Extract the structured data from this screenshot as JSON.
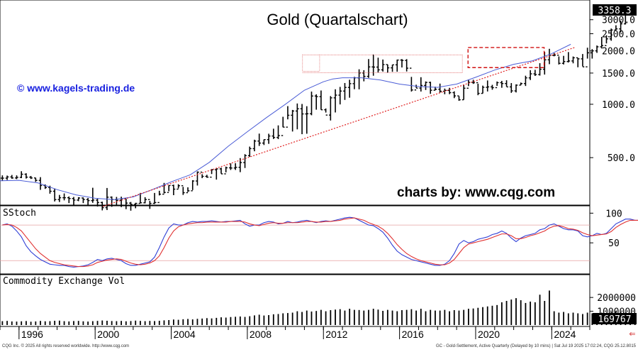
{
  "chart_data": [
    {
      "type": "ohlc",
      "title": "Gold (Quartalschart)",
      "watermark_left": "© www.kagels-trading.de",
      "watermark_right": "charts by: www.cqg.com",
      "scale": "log",
      "ylim": [
        280,
        3700
      ],
      "yticks": [
        500,
        1000,
        1500,
        2000,
        2500,
        3000
      ],
      "ytick_labels": [
        "500.0",
        "1000.0",
        "1500.0",
        "2000.0",
        "2500.0",
        "3000.0"
      ],
      "last_value_label": "3358.3",
      "x_range": [
        1995.0,
        2026.0
      ],
      "x_ticks": [
        1996,
        2000,
        2004,
        2008,
        2012,
        2016,
        2020,
        2024
      ],
      "x_tick_labels": [
        "1996",
        "2000",
        "2004",
        "2008",
        "2012",
        "2016",
        "2020",
        "2024"
      ],
      "series": [
        {
          "kind": "quarterly-bars",
          "start": 1995.0,
          "step": 0.25,
          "close": [
            383,
            389,
            384,
            387,
            403,
            388,
            384,
            372,
            348,
            339,
            323,
            290,
            297,
            297,
            294,
            288,
            296,
            290,
            286,
            288,
            279,
            261,
            299,
            290,
            287,
            294,
            277,
            272,
            276,
            278,
            290,
            276,
            279,
            311,
            318,
            348,
            332,
            347,
            317,
            325,
            369,
            414,
            392,
            388,
            427,
            432,
            405,
            438,
            437,
            441,
            469,
            513,
            562,
            620,
            604,
            632,
            662,
            650,
            666,
            743,
            867,
            916,
            943,
            882,
            884,
            1113,
            1104,
            931,
            869,
            1087,
            1126,
            1187,
            1244,
            1307,
            1410,
            1503,
            1437,
            1624,
            1621,
            1564,
            1675,
            1605,
            1669,
            1776,
            1766,
            1598,
            1204,
            1234,
            1277,
            1328,
            1200,
            1215,
            1184,
            1198,
            1163,
            1115,
            1060,
            1232,
            1329,
            1323,
            1152,
            1246,
            1253,
            1241,
            1324,
            1309,
            1253,
            1190,
            1282,
            1309,
            1409,
            1485,
            1471,
            1576,
            1781,
            1886,
            1892,
            1702,
            1742,
            1755,
            1829,
            1804,
            1626,
            1951,
            2002,
            2109,
            2143,
            2339,
            2624,
            2662,
            2842,
            3350,
            3358
          ],
          "high": [
            397,
            396,
            399,
            397,
            419,
            408,
            394,
            385,
            388,
            353,
            347,
            335,
            308,
            314,
            302,
            300,
            299,
            298,
            296,
            338,
            293,
            282,
            337,
            302,
            300,
            301,
            293,
            281,
            278,
            316,
            299,
            285,
            316,
            325,
            360,
            349,
            352,
            354,
            342,
            340,
            373,
            418,
            403,
            400,
            431,
            433,
            439,
            445,
            464,
            465,
            497,
            523,
            577,
            631,
            683,
            633,
            682,
            728,
            760,
            850,
            976,
            929,
            1010,
            1004,
            975,
            1179,
            1138,
            1196,
            947,
            1112,
            1215,
            1253,
            1318,
            1375,
            1427,
            1575,
            1557,
            1799,
            1908,
            1831,
            1788,
            1675,
            1671,
            1787,
            1798,
            1797,
            1427,
            1289,
            1421,
            1345,
            1340,
            1256,
            1308,
            1226,
            1238,
            1183,
            1110,
            1287,
            1378,
            1375,
            1306,
            1274,
            1362,
            1287,
            1344,
            1355,
            1366,
            1317,
            1295,
            1326,
            1449,
            1557,
            1564,
            1705,
            1973,
            2055,
            1945,
            1862,
            1876,
            1970,
            1860,
            1825,
            1921,
            2085,
            2048,
            2145,
            2400,
            2451,
            2674,
            2790,
            2959,
            3457,
            3509
          ],
          "low": [
            369,
            374,
            380,
            378,
            383,
            381,
            379,
            365,
            329,
            333,
            313,
            283,
            281,
            287,
            277,
            271,
            284,
            277,
            269,
            278,
            265,
            252,
            253,
            264,
            270,
            263,
            256,
            251,
            259,
            276,
            276,
            257,
            274,
            306,
            314,
            323,
            307,
            335,
            308,
            320,
            328,
            348,
            383,
            385,
            404,
            376,
            406,
            413,
            426,
            426,
            414,
            437,
            505,
            543,
            582,
            589,
            598,
            637,
            636,
            742,
            822,
            702,
            722,
            678,
            682,
            867,
            932,
            931,
            898,
            810,
            899,
            998,
            1058,
            1089,
            1216,
            1214,
            1347,
            1409,
            1449,
            1511,
            1529,
            1507,
            1525,
            1527,
            1613,
            1531,
            1180,
            1240,
            1180,
            1204,
            1145,
            1199,
            1163,
            1139,
            1140,
            1083,
            1046,
            1061,
            1266,
            1303,
            1125,
            1151,
            1181,
            1208,
            1269,
            1239,
            1257,
            1160,
            1166,
            1280,
            1268,
            1370,
            1445,
            1451,
            1471,
            1683,
            1865,
            1676,
            1677,
            1721,
            1702,
            1617,
            1635,
            1810,
            1810,
            1950,
            2064,
            2204,
            2282,
            2626,
            2545,
            2820,
            3230
          ]
        },
        {
          "kind": "moving-average",
          "color": "#4a5cd6",
          "points": [
            [
              1995.0,
              370
            ],
            [
              1996.0,
              372
            ],
            [
              1997.0,
              360
            ],
            [
              1998.0,
              330
            ],
            [
              1999.0,
              308
            ],
            [
              2000.0,
              295
            ],
            [
              2001.0,
              290
            ],
            [
              2002.0,
              300
            ],
            [
              2003.0,
              330
            ],
            [
              2004.0,
              365
            ],
            [
              2005.0,
              400
            ],
            [
              2006.0,
              470
            ],
            [
              2007.0,
              580
            ],
            [
              2008.0,
              700
            ],
            [
              2009.0,
              840
            ],
            [
              2010.0,
              1000
            ],
            [
              2011.0,
              1200
            ],
            [
              2012.0,
              1340
            ],
            [
              2012.5,
              1390
            ],
            [
              2013.0,
              1410
            ],
            [
              2014.0,
              1410
            ],
            [
              2015.0,
              1370
            ],
            [
              2016.0,
              1300
            ],
            [
              2017.0,
              1260
            ],
            [
              2018.0,
              1245
            ],
            [
              2019.0,
              1300
            ],
            [
              2020.0,
              1420
            ],
            [
              2021.0,
              1560
            ],
            [
              2022.0,
              1680
            ],
            [
              2023.0,
              1760
            ],
            [
              2024.0,
              1930
            ],
            [
              2025.0,
              2180
            ]
          ]
        },
        {
          "kind": "trendline-dotted",
          "color": "#e02020",
          "points": [
            [
              2000.4,
              265
            ],
            [
              2025.2,
              2090
            ]
          ]
        },
        {
          "kind": "range-box-dotted",
          "color": "#e06a6a",
          "x": [
            2010.9,
            2011.8,
            2011.8,
            2019.3
          ],
          "y": [
            1535,
            1900,
            1900,
            1900
          ]
        },
        {
          "kind": "range-box-dashed",
          "color": "#d01010",
          "x": [
            2019.6,
            2023.6
          ],
          "y": [
            1610,
            2090
          ]
        }
      ]
    },
    {
      "type": "line",
      "panel_label": "SStoch",
      "ylim": [
        0,
        110
      ],
      "yticks": [
        50,
        100
      ],
      "ytick_labels": [
        "50",
        "100"
      ],
      "reference_lines": [
        80,
        20
      ],
      "series": [
        {
          "color": "#2f3fd6",
          "start": 1995.0,
          "step": 0.25,
          "values": [
            80,
            82,
            78,
            70,
            60,
            45,
            35,
            28,
            22,
            18,
            14,
            13,
            12,
            12,
            10,
            9,
            10,
            11,
            13,
            17,
            22,
            20,
            23,
            24,
            22,
            20,
            15,
            12,
            12,
            14,
            16,
            18,
            26,
            42,
            60,
            75,
            82,
            80,
            80,
            84,
            86,
            85,
            86,
            86,
            87,
            86,
            85,
            86,
            86,
            87,
            88,
            82,
            78,
            80,
            80,
            84,
            86,
            85,
            82,
            83,
            86,
            84,
            85,
            87,
            88,
            86,
            84,
            86,
            87,
            86,
            88,
            90,
            92,
            93,
            92,
            88,
            84,
            80,
            79,
            74,
            68,
            58,
            46,
            36,
            30,
            26,
            22,
            20,
            18,
            16,
            14,
            12,
            12,
            14,
            20,
            32,
            48,
            54,
            50,
            52,
            56,
            58,
            60,
            64,
            66,
            70,
            66,
            58,
            52,
            58,
            62,
            64,
            66,
            72,
            74,
            80,
            82,
            78,
            74,
            72,
            72,
            70,
            62,
            60,
            62,
            66,
            64,
            66,
            74,
            82,
            86,
            90,
            90,
            88,
            88
          ]
        },
        {
          "color": "#e03030",
          "start": 1995.0,
          "step": 0.25,
          "values": [
            80,
            81,
            80,
            76,
            70,
            60,
            50,
            40,
            32,
            26,
            20,
            17,
            15,
            13,
            12,
            11,
            10,
            10,
            11,
            13,
            17,
            19,
            21,
            22,
            23,
            22,
            19,
            16,
            14,
            13,
            14,
            16,
            20,
            28,
            42,
            58,
            70,
            77,
            80,
            82,
            83,
            84,
            84,
            85,
            85,
            85,
            85,
            85,
            86,
            86,
            86,
            85,
            82,
            80,
            79,
            81,
            83,
            84,
            83,
            83,
            84,
            84,
            84,
            85,
            86,
            86,
            85,
            85,
            86,
            86,
            87,
            88,
            90,
            91,
            92,
            90,
            88,
            84,
            81,
            78,
            73,
            66,
            57,
            47,
            39,
            32,
            27,
            23,
            20,
            18,
            16,
            14,
            13,
            13,
            16,
            22,
            32,
            42,
            48,
            50,
            52,
            54,
            56,
            59,
            62,
            65,
            65,
            62,
            57,
            57,
            59,
            62,
            64,
            67,
            70,
            75,
            78,
            79,
            77,
            74,
            73,
            71,
            67,
            64,
            62,
            63,
            64,
            65,
            69,
            76,
            81,
            85,
            88,
            88,
            88
          ]
        }
      ]
    },
    {
      "type": "bar",
      "panel_label": "Commodity Exchange Vol",
      "ylim": [
        0,
        3500000
      ],
      "yticks": [
        1000000,
        2000000
      ],
      "ytick_labels": [
        "1000000",
        "2000000"
      ],
      "last_value_label": "169767",
      "start": 1995.0,
      "step": 0.25,
      "values": [
        280000,
        300000,
        260000,
        250000,
        270000,
        290000,
        240000,
        260000,
        300000,
        270000,
        280000,
        310000,
        320000,
        280000,
        260000,
        290000,
        300000,
        270000,
        250000,
        280000,
        300000,
        330000,
        310000,
        290000,
        280000,
        300000,
        270000,
        290000,
        320000,
        300000,
        280000,
        300000,
        290000,
        310000,
        340000,
        360000,
        400000,
        380000,
        420000,
        440000,
        410000,
        450000,
        470000,
        500000,
        480000,
        520000,
        560000,
        540000,
        580000,
        600000,
        620000,
        590000,
        640000,
        700000,
        750000,
        690000,
        720000,
        780000,
        800000,
        850000,
        870000,
        900000,
        1000000,
        950000,
        1050000,
        980000,
        1020000,
        1100000,
        1000000,
        1080000,
        1120000,
        1150000,
        1050000,
        1180000,
        1100000,
        1090000,
        1050000,
        1100000,
        1180000,
        1120000,
        1030000,
        1100000,
        1050000,
        1000000,
        1080000,
        1100000,
        1150000,
        1050000,
        1180000,
        1000000,
        1100000,
        1050000,
        1050000,
        1100000,
        1000000,
        1080000,
        1050000,
        1100000,
        1180000,
        1200000,
        1250000,
        1300000,
        1350000,
        1400000,
        1450000,
        1650000,
        1750000,
        1850000,
        1950000,
        1800000,
        1600000,
        1700000,
        1650000,
        2200000,
        1750000,
        2500000,
        1000000,
        900000,
        950000,
        850000,
        900000,
        850000,
        800000,
        900000,
        850000,
        800000,
        900000,
        850000,
        950000,
        1000000,
        950000,
        900000,
        880000,
        800000,
        169767
      ]
    }
  ],
  "x_axis": {
    "labels": [
      "1996",
      "2000",
      "2004",
      "2008",
      "2012",
      "2016",
      "2020",
      "2024"
    ]
  },
  "footer": {
    "left": "CQG Inc. © 2025 All rights reserved worldwide.  http://www.cqg.com",
    "right": "GC - Gold-Settlement, Active Quarterly (Delayed by 10 mins)  |  Sat Jul 19 2025 17:02:24, CQG 25.12.8015"
  }
}
